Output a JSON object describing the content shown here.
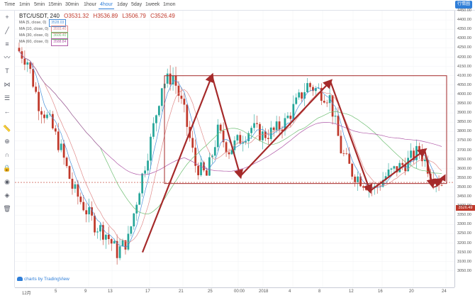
{
  "toolbar": {
    "intervals": [
      "Time",
      "1min",
      "5min",
      "15min",
      "30min",
      "1hour",
      "4hour",
      "1day",
      "5day",
      "1week",
      "1mon"
    ],
    "active": "4hour",
    "corner_button": "行情圖"
  },
  "legend": {
    "symbol": "BTC/USDT, 240",
    "o_label": "O",
    "o": "3531.32",
    "h_label": "H",
    "h": "3536.89",
    "l_label": "L",
    "l": "3506.79",
    "c_label": "C",
    "c": "3526.49",
    "ma": [
      {
        "label": "MA (5, close, 0)",
        "value": "3528.03",
        "color": "#4a90d9"
      },
      {
        "label": "MA (10, close, 0)",
        "value": "3593.40",
        "color": "#e08a8a"
      },
      {
        "label": "MA (30, close, 0)",
        "value": "3600.40",
        "color": "#6fbf73"
      },
      {
        "label": "MA (60, close, 0)",
        "value": "3588.84",
        "color": "#b05aa8"
      }
    ]
  },
  "price_axis": [
    "4450.00",
    "4400.00",
    "4350.00",
    "4300.00",
    "4250.00",
    "4200.00",
    "4150.00",
    "4100.00",
    "4050.00",
    "4000.00",
    "3950.00",
    "3900.00",
    "3850.00",
    "3800.00",
    "3750.00",
    "3700.00",
    "3650.00",
    "3600.00",
    "3550.00",
    "3500.00",
    "3450.00",
    "3400.00",
    "3350.00",
    "3300.00",
    "3250.00",
    "3200.00",
    "3150.00",
    "3100.00",
    "3050.00"
  ],
  "last_price": "3526.49",
  "time_axis": [
    "12月",
    "5",
    "9",
    "13",
    "17",
    "21",
    "25",
    "00:00",
    "2018",
    "4",
    "8",
    "12",
    "16",
    "20",
    "24"
  ],
  "watermark": "charts by TradingView",
  "colors": {
    "up": "#26a69a",
    "down": "#c0392b",
    "annotation": "#a52a2a"
  },
  "chart_data": {
    "type": "candlestick",
    "close_overlay_series": [
      4250,
      4180,
      3950,
      3850,
      3700,
      3500,
      3400,
      3300,
      3250,
      3150,
      3220,
      3500,
      3750,
      4050,
      4100,
      3900,
      3620,
      3560,
      3800,
      3700,
      3760,
      3820,
      3780,
      3800,
      3850,
      3950,
      4050,
      4020,
      3980,
      3700,
      3580,
      3530,
      3490,
      3560,
      3600,
      3640,
      3700,
      3580,
      3520
    ]
  }
}
